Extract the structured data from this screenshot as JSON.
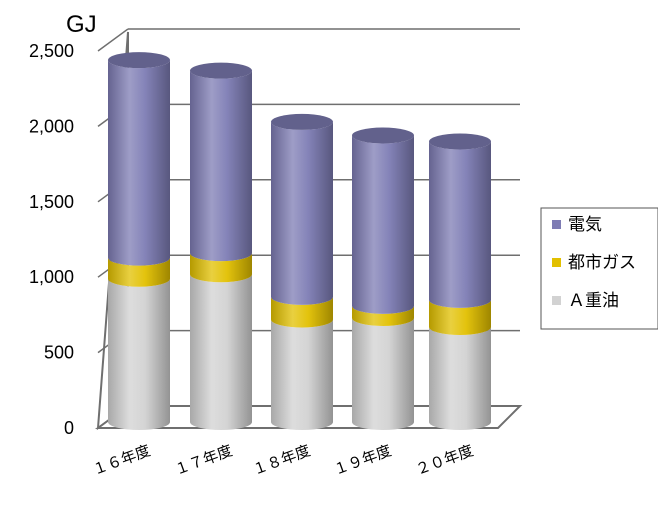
{
  "chart_data": {
    "type": "bar",
    "stacked": true,
    "style": "3d-cylinder",
    "unit_label": "GJ",
    "categories": [
      "１６年度",
      "１７年度",
      "１８年度",
      "１９年度",
      "２０年度"
    ],
    "series": [
      {
        "name": "Ａ重油",
        "color": "#d2d2d2",
        "values": [
          950,
          980,
          680,
          690,
          630
        ]
      },
      {
        "name": "都市ガス",
        "color": "#e2c000",
        "values": [
          140,
          140,
          150,
          80,
          180
        ]
      },
      {
        "name": "電気",
        "color": "#7e7cb4",
        "values": [
          1310,
          1210,
          1160,
          1130,
          1050
        ]
      }
    ],
    "yticks": [
      "0",
      "500",
      "1,000",
      "1,500",
      "2,000",
      "2,500"
    ],
    "ylim": [
      0,
      2500
    ],
    "grid": true,
    "legend_position": "right"
  }
}
